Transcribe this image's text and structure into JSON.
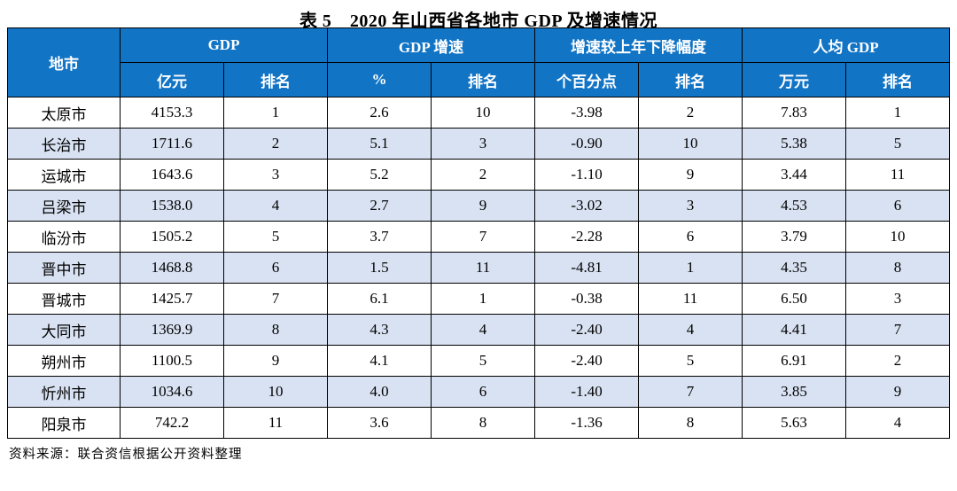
{
  "title": "表 5　2020 年山西省各地市 GDP 及增速情况",
  "source_note": "资料来源：联合资信根据公开资料整理",
  "colors": {
    "header_bg": "#1274C5",
    "header_text": "#FFFFFF",
    "row_alt_bg": "#D9E2F2",
    "border": "#000000"
  },
  "table": {
    "group_headers": [
      "地市",
      "GDP",
      "GDP 增速",
      "增速较上年下降幅度",
      "人均 GDP"
    ],
    "sub_headers": [
      "亿元",
      "排名",
      "%",
      "排名",
      "个百分点",
      "排名",
      "万元",
      "排名"
    ],
    "rows": [
      [
        "太原市",
        "4153.3",
        "1",
        "2.6",
        "10",
        "-3.98",
        "2",
        "7.83",
        "1"
      ],
      [
        "长治市",
        "1711.6",
        "2",
        "5.1",
        "3",
        "-0.90",
        "10",
        "5.38",
        "5"
      ],
      [
        "运城市",
        "1643.6",
        "3",
        "5.2",
        "2",
        "-1.10",
        "9",
        "3.44",
        "11"
      ],
      [
        "吕梁市",
        "1538.0",
        "4",
        "2.7",
        "9",
        "-3.02",
        "3",
        "4.53",
        "6"
      ],
      [
        "临汾市",
        "1505.2",
        "5",
        "3.7",
        "7",
        "-2.28",
        "6",
        "3.79",
        "10"
      ],
      [
        "晋中市",
        "1468.8",
        "6",
        "1.5",
        "11",
        "-4.81",
        "1",
        "4.35",
        "8"
      ],
      [
        "晋城市",
        "1425.7",
        "7",
        "6.1",
        "1",
        "-0.38",
        "11",
        "6.50",
        "3"
      ],
      [
        "大同市",
        "1369.9",
        "8",
        "4.3",
        "4",
        "-2.40",
        "4",
        "4.41",
        "7"
      ],
      [
        "朔州市",
        "1100.5",
        "9",
        "4.1",
        "5",
        "-2.40",
        "5",
        "6.91",
        "2"
      ],
      [
        "忻州市",
        "1034.6",
        "10",
        "4.0",
        "6",
        "-1.40",
        "7",
        "3.85",
        "9"
      ],
      [
        "阳泉市",
        "742.2",
        "11",
        "3.6",
        "8",
        "-1.36",
        "8",
        "5.63",
        "4"
      ]
    ]
  },
  "chart_data": {
    "type": "table",
    "title": "表 5　2020 年山西省各地市 GDP 及增速情况",
    "columns": [
      "地市",
      "GDP 亿元",
      "GDP 排名",
      "GDP增速 %",
      "GDP增速 排名",
      "增速较上年下降幅度 个百分点",
      "增速较上年下降幅度 排名",
      "人均GDP 万元",
      "人均GDP 排名"
    ],
    "rows": [
      [
        "太原市",
        4153.3,
        1,
        2.6,
        10,
        -3.98,
        2,
        7.83,
        1
      ],
      [
        "长治市",
        1711.6,
        2,
        5.1,
        3,
        -0.9,
        10,
        5.38,
        5
      ],
      [
        "运城市",
        1643.6,
        3,
        5.2,
        2,
        -1.1,
        9,
        3.44,
        11
      ],
      [
        "吕梁市",
        1538.0,
        4,
        2.7,
        9,
        -3.02,
        3,
        4.53,
        6
      ],
      [
        "临汾市",
        1505.2,
        5,
        3.7,
        7,
        -2.28,
        6,
        3.79,
        10
      ],
      [
        "晋中市",
        1468.8,
        6,
        1.5,
        11,
        -4.81,
        1,
        4.35,
        8
      ],
      [
        "晋城市",
        1425.7,
        7,
        6.1,
        1,
        -0.38,
        11,
        6.5,
        3
      ],
      [
        "大同市",
        1369.9,
        8,
        4.3,
        4,
        -2.4,
        4,
        4.41,
        7
      ],
      [
        "朔州市",
        1100.5,
        9,
        4.1,
        5,
        -2.4,
        5,
        6.91,
        2
      ],
      [
        "忻州市",
        1034.6,
        10,
        4.0,
        6,
        -1.4,
        7,
        3.85,
        9
      ],
      [
        "阳泉市",
        742.2,
        11,
        3.6,
        8,
        -1.36,
        8,
        5.63,
        4
      ]
    ]
  }
}
